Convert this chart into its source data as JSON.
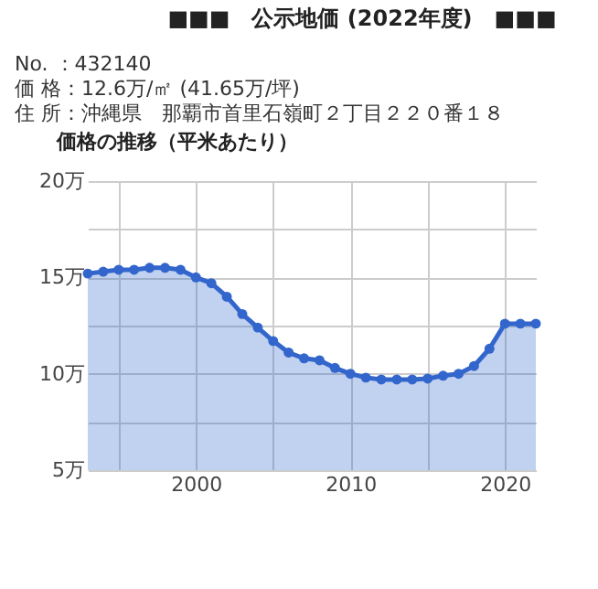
{
  "chart_data": {
    "type": "area",
    "title": "■■■　公示地価 (2022年度)　■■■",
    "annotations": [
      "No. ：432140",
      "価 格：12.6万/㎡ (41.65万/坪)",
      "住 所：沖縄県　那覇市首里石嶺町２丁目２２０番１８"
    ],
    "subtitle": "価格の推移（平米あたり）",
    "x": [
      1993,
      1994,
      1995,
      1996,
      1997,
      1998,
      1999,
      2000,
      2001,
      2002,
      2003,
      2004,
      2005,
      2006,
      2007,
      2008,
      2009,
      2010,
      2011,
      2012,
      2013,
      2014,
      2015,
      2016,
      2017,
      2018,
      2019,
      2020,
      2021,
      2022
    ],
    "series": [
      {
        "color": "#3366cc",
        "values": [
          15.2,
          15.3,
          15.4,
          15.4,
          15.5,
          15.5,
          15.4,
          15.0,
          14.7,
          14.0,
          13.1,
          12.4,
          11.7,
          11.1,
          10.8,
          10.7,
          10.3,
          10.0,
          9.8,
          9.7,
          9.7,
          9.7,
          9.75,
          9.9,
          10.0,
          10.4,
          11.3,
          12.6,
          12.6,
          12.6
        ]
      }
    ],
    "xlim": [
      1993,
      2022
    ],
    "xticks": [
      {
        "value": 1995,
        "label": null
      },
      {
        "value": 2000,
        "label": "2000"
      },
      {
        "value": 2005,
        "label": null
      },
      {
        "value": 2010,
        "label": "2010"
      },
      {
        "value": 2015,
        "label": null
      },
      {
        "value": 2020,
        "label": "2020"
      }
    ],
    "ylim": [
      5,
      20
    ],
    "yticks": [
      {
        "value": 5,
        "label": "5万"
      },
      {
        "value": 7.5,
        "label": null
      },
      {
        "value": 10,
        "label": "10万"
      },
      {
        "value": 12.5,
        "label": null
      },
      {
        "value": 15,
        "label": "15万"
      },
      {
        "value": 17.5,
        "label": null
      },
      {
        "value": 20,
        "label": "20万"
      }
    ],
    "grid": true,
    "marker": "circle",
    "line_style": "solid"
  }
}
